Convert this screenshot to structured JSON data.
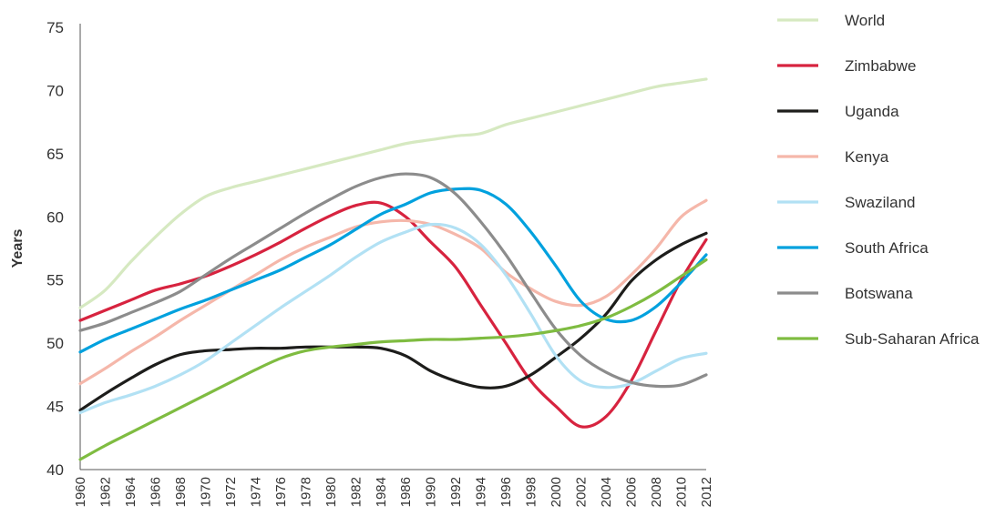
{
  "chart_data": {
    "type": "line",
    "title": "",
    "xlabel": "",
    "ylabel": "Years",
    "ylim": [
      40,
      75
    ],
    "yticks": [
      40,
      45,
      50,
      55,
      60,
      65,
      70,
      75
    ],
    "xlim": [
      1960,
      2012
    ],
    "xticks": [
      "1960",
      "1962",
      "1964",
      "1966",
      "1968",
      "1970",
      "1972",
      "1974",
      "1976",
      "1978",
      "1980",
      "1982",
      "1984",
      "1986",
      "1990",
      "1992",
      "1994",
      "1996",
      "1998",
      "2000",
      "2002",
      "2004",
      "2006",
      "2008",
      "2010",
      "2012"
    ],
    "grid": false,
    "legend_position": "right",
    "series": [
      {
        "name": "World",
        "color": "#d6e9c1",
        "points": [
          [
            1960,
            52.8
          ],
          [
            1962,
            54.2
          ],
          [
            1964,
            56.4
          ],
          [
            1966,
            58.4
          ],
          [
            1968,
            60.2
          ],
          [
            1970,
            61.6
          ],
          [
            1972,
            62.3
          ],
          [
            1974,
            62.8
          ],
          [
            1976,
            63.3
          ],
          [
            1978,
            63.8
          ],
          [
            1980,
            64.3
          ],
          [
            1982,
            64.8
          ],
          [
            1984,
            65.3
          ],
          [
            1986,
            65.8
          ],
          [
            1990,
            66.1
          ],
          [
            1992,
            66.4
          ],
          [
            1994,
            66.6
          ],
          [
            1996,
            67.3
          ],
          [
            1998,
            67.8
          ],
          [
            2000,
            68.3
          ],
          [
            2002,
            68.8
          ],
          [
            2004,
            69.3
          ],
          [
            2006,
            69.8
          ],
          [
            2008,
            70.3
          ],
          [
            2010,
            70.6
          ],
          [
            2012,
            70.9
          ]
        ]
      },
      {
        "name": "Zimbabwe",
        "color": "#d7233f",
        "points": [
          [
            1960,
            51.8
          ],
          [
            1962,
            52.6
          ],
          [
            1964,
            53.4
          ],
          [
            1966,
            54.2
          ],
          [
            1968,
            54.7
          ],
          [
            1970,
            55.3
          ],
          [
            1972,
            56.1
          ],
          [
            1974,
            57.0
          ],
          [
            1976,
            58.0
          ],
          [
            1978,
            59.1
          ],
          [
            1980,
            60.1
          ],
          [
            1982,
            60.9
          ],
          [
            1984,
            61.1
          ],
          [
            1986,
            60.0
          ],
          [
            1990,
            58.0
          ],
          [
            1992,
            56.0
          ],
          [
            1994,
            53.0
          ],
          [
            1996,
            50.0
          ],
          [
            1998,
            47.0
          ],
          [
            2000,
            45.0
          ],
          [
            2002,
            43.4
          ],
          [
            2004,
            44.2
          ],
          [
            2006,
            47.0
          ],
          [
            2008,
            51.0
          ],
          [
            2010,
            55.0
          ],
          [
            2012,
            58.2
          ]
        ]
      },
      {
        "name": "Uganda",
        "color": "#1d1d1b",
        "points": [
          [
            1960,
            44.7
          ],
          [
            1962,
            46.0
          ],
          [
            1964,
            47.2
          ],
          [
            1966,
            48.3
          ],
          [
            1968,
            49.1
          ],
          [
            1970,
            49.4
          ],
          [
            1972,
            49.5
          ],
          [
            1974,
            49.6
          ],
          [
            1976,
            49.6
          ],
          [
            1978,
            49.7
          ],
          [
            1980,
            49.7
          ],
          [
            1982,
            49.7
          ],
          [
            1984,
            49.6
          ],
          [
            1986,
            49.0
          ],
          [
            1990,
            47.8
          ],
          [
            1992,
            47.0
          ],
          [
            1994,
            46.5
          ],
          [
            1996,
            46.6
          ],
          [
            1998,
            47.5
          ],
          [
            2000,
            48.9
          ],
          [
            2002,
            50.4
          ],
          [
            2004,
            52.3
          ],
          [
            2006,
            54.9
          ],
          [
            2008,
            56.6
          ],
          [
            2010,
            57.8
          ],
          [
            2012,
            58.7
          ]
        ]
      },
      {
        "name": "Kenya",
        "color": "#f5b7aa",
        "points": [
          [
            1960,
            46.8
          ],
          [
            1962,
            48.0
          ],
          [
            1964,
            49.3
          ],
          [
            1966,
            50.5
          ],
          [
            1968,
            51.8
          ],
          [
            1970,
            53.0
          ],
          [
            1972,
            54.2
          ],
          [
            1974,
            55.4
          ],
          [
            1976,
            56.6
          ],
          [
            1978,
            57.6
          ],
          [
            1980,
            58.4
          ],
          [
            1982,
            59.2
          ],
          [
            1984,
            59.6
          ],
          [
            1986,
            59.7
          ],
          [
            1990,
            59.4
          ],
          [
            1992,
            58.6
          ],
          [
            1994,
            57.5
          ],
          [
            1996,
            55.6
          ],
          [
            1998,
            54.3
          ],
          [
            2000,
            53.3
          ],
          [
            2002,
            53.0
          ],
          [
            2004,
            53.7
          ],
          [
            2006,
            55.4
          ],
          [
            2008,
            57.5
          ],
          [
            2010,
            60.0
          ],
          [
            2012,
            61.3
          ]
        ]
      },
      {
        "name": "Swaziland",
        "color": "#b2e1f4",
        "points": [
          [
            1960,
            44.5
          ],
          [
            1962,
            45.3
          ],
          [
            1964,
            45.9
          ],
          [
            1966,
            46.6
          ],
          [
            1968,
            47.5
          ],
          [
            1970,
            48.6
          ],
          [
            1972,
            50.0
          ],
          [
            1974,
            51.4
          ],
          [
            1976,
            52.8
          ],
          [
            1978,
            54.1
          ],
          [
            1980,
            55.4
          ],
          [
            1982,
            56.8
          ],
          [
            1984,
            58.0
          ],
          [
            1986,
            58.8
          ],
          [
            1990,
            59.4
          ],
          [
            1992,
            59.1
          ],
          [
            1994,
            57.8
          ],
          [
            1996,
            55.4
          ],
          [
            1998,
            52.3
          ],
          [
            2000,
            49.0
          ],
          [
            2002,
            47.0
          ],
          [
            2004,
            46.5
          ],
          [
            2006,
            46.8
          ],
          [
            2008,
            47.8
          ],
          [
            2010,
            48.8
          ],
          [
            2012,
            49.2
          ]
        ]
      },
      {
        "name": "South Africa",
        "color": "#00a1de",
        "points": [
          [
            1960,
            49.3
          ],
          [
            1962,
            50.3
          ],
          [
            1964,
            51.1
          ],
          [
            1966,
            51.9
          ],
          [
            1968,
            52.7
          ],
          [
            1970,
            53.4
          ],
          [
            1972,
            54.2
          ],
          [
            1974,
            55.0
          ],
          [
            1976,
            55.8
          ],
          [
            1978,
            56.8
          ],
          [
            1980,
            57.8
          ],
          [
            1982,
            59.0
          ],
          [
            1984,
            60.2
          ],
          [
            1986,
            61.0
          ],
          [
            1990,
            61.9
          ],
          [
            1992,
            62.2
          ],
          [
            1994,
            62.1
          ],
          [
            1996,
            61.0
          ],
          [
            1998,
            58.8
          ],
          [
            2000,
            56.1
          ],
          [
            2002,
            53.3
          ],
          [
            2004,
            51.9
          ],
          [
            2006,
            51.8
          ],
          [
            2008,
            52.9
          ],
          [
            2010,
            54.8
          ],
          [
            2012,
            57.0
          ]
        ]
      },
      {
        "name": "Botswana",
        "color": "#8c8c8c",
        "points": [
          [
            1960,
            51.0
          ],
          [
            1962,
            51.6
          ],
          [
            1964,
            52.4
          ],
          [
            1966,
            53.2
          ],
          [
            1968,
            54.1
          ],
          [
            1970,
            55.4
          ],
          [
            1972,
            56.7
          ],
          [
            1974,
            57.9
          ],
          [
            1976,
            59.1
          ],
          [
            1978,
            60.3
          ],
          [
            1980,
            61.4
          ],
          [
            1982,
            62.4
          ],
          [
            1984,
            63.1
          ],
          [
            1986,
            63.4
          ],
          [
            1990,
            63.1
          ],
          [
            1992,
            61.8
          ],
          [
            1994,
            59.6
          ],
          [
            1996,
            57.0
          ],
          [
            1998,
            54.0
          ],
          [
            2000,
            51.1
          ],
          [
            2002,
            49.0
          ],
          [
            2004,
            47.7
          ],
          [
            2006,
            46.9
          ],
          [
            2008,
            46.6
          ],
          [
            2010,
            46.7
          ],
          [
            2012,
            47.5
          ]
        ]
      },
      {
        "name": "Sub-Saharan Africa",
        "color": "#7fbc41",
        "points": [
          [
            1960,
            40.8
          ],
          [
            1962,
            41.9
          ],
          [
            1964,
            42.9
          ],
          [
            1966,
            43.9
          ],
          [
            1968,
            44.9
          ],
          [
            1970,
            45.9
          ],
          [
            1972,
            46.9
          ],
          [
            1974,
            47.9
          ],
          [
            1976,
            48.8
          ],
          [
            1978,
            49.4
          ],
          [
            1980,
            49.7
          ],
          [
            1982,
            49.9
          ],
          [
            1984,
            50.1
          ],
          [
            1986,
            50.2
          ],
          [
            1990,
            50.3
          ],
          [
            1992,
            50.3
          ],
          [
            1994,
            50.4
          ],
          [
            1996,
            50.5
          ],
          [
            1998,
            50.7
          ],
          [
            2000,
            51.0
          ],
          [
            2002,
            51.4
          ],
          [
            2004,
            52.0
          ],
          [
            2006,
            52.9
          ],
          [
            2008,
            54.0
          ],
          [
            2010,
            55.3
          ],
          [
            2012,
            56.6
          ]
        ]
      }
    ]
  }
}
